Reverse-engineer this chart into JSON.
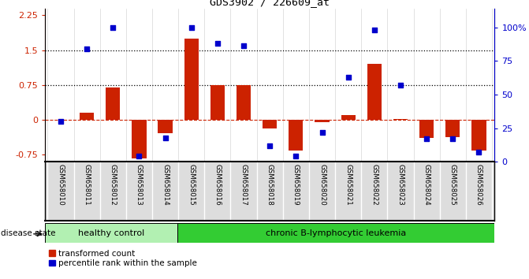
{
  "title": "GDS3902 / 226609_at",
  "samples": [
    "GSM658010",
    "GSM658011",
    "GSM658012",
    "GSM658013",
    "GSM658014",
    "GSM658015",
    "GSM658016",
    "GSM658017",
    "GSM658018",
    "GSM658019",
    "GSM658020",
    "GSM658021",
    "GSM658022",
    "GSM658023",
    "GSM658024",
    "GSM658025",
    "GSM658026"
  ],
  "transformed_count": [
    0.0,
    0.15,
    0.7,
    -0.82,
    -0.28,
    1.75,
    0.75,
    0.75,
    -0.18,
    -0.65,
    -0.05,
    0.1,
    1.2,
    0.02,
    -0.38,
    -0.37,
    -0.65
  ],
  "percentile_rank": [
    30,
    84,
    100,
    4,
    18,
    100,
    88,
    86,
    12,
    4,
    22,
    63,
    98,
    57,
    17,
    17,
    7
  ],
  "healthy_count": 5,
  "group_labels": [
    "healthy control",
    "chronic B-lymphocytic leukemia"
  ],
  "healthy_color": "#b2f0b2",
  "leuk_color": "#33cc33",
  "bar_color": "#cc2200",
  "dot_color": "#0000cc",
  "ylim": [
    -0.9,
    2.4
  ],
  "y2lim": [
    0,
    114
  ],
  "yticks_left": [
    -0.75,
    0,
    0.75,
    1.5,
    2.25
  ],
  "yticks_right": [
    0,
    25,
    50,
    75,
    100
  ],
  "ytick_labels_right": [
    "0",
    "25",
    "50",
    "75",
    "100%"
  ],
  "hlines": [
    1.5,
    0.75
  ],
  "legend_items": [
    "transformed count",
    "percentile rank within the sample"
  ],
  "disease_label": "disease state",
  "background_color": "#ffffff",
  "bar_width": 0.55
}
